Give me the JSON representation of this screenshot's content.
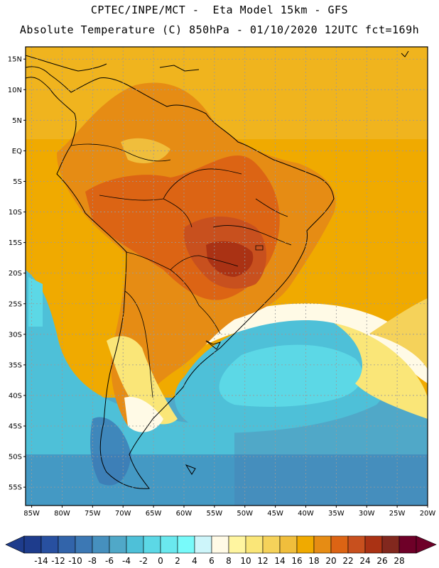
{
  "header": {
    "line1": "CPTEC/INPE/MCT -  Eta Model 15km - GFS",
    "line2": "Absolute Temperature (C) 850hPa - 01/10/2020 12UTC fct=169h"
  },
  "map": {
    "lat_labels": [
      "15N",
      "10N",
      "5N",
      "EQ",
      "5S",
      "10S",
      "15S",
      "20S",
      "25S",
      "30S",
      "35S",
      "40S",
      "45S",
      "50S",
      "55S"
    ],
    "lon_labels": [
      "85W",
      "80W",
      "75W",
      "70W",
      "65W",
      "60W",
      "55W",
      "50W",
      "45W",
      "40W",
      "35W",
      "30W",
      "25W",
      "20W"
    ]
  },
  "colorbar": {
    "labels": [
      "-14",
      "-12",
      "-10",
      "-8",
      "-6",
      "-4",
      "-2",
      "0",
      "2",
      "4",
      "6",
      "8",
      "10",
      "12",
      "14",
      "16",
      "18",
      "20",
      "22",
      "24",
      "26",
      "28"
    ],
    "colors": [
      "#1e3c8c",
      "#2850a0",
      "#3264aa",
      "#3c78b4",
      "#4690be",
      "#50a8c8",
      "#4ec0d8",
      "#5cd8e6",
      "#6ae8ee",
      "#78fafa",
      "#cdf5fa",
      "#fffae6",
      "#fff5a0",
      "#fae678",
      "#f5d25a",
      "#f0be3c",
      "#f0aa00",
      "#e68c14",
      "#dc6414",
      "#c8501e",
      "#aa3214",
      "#82281e",
      "#6e0028"
    ],
    "under_color": "#1e3c8c",
    "over_color": "#6e0028"
  }
}
